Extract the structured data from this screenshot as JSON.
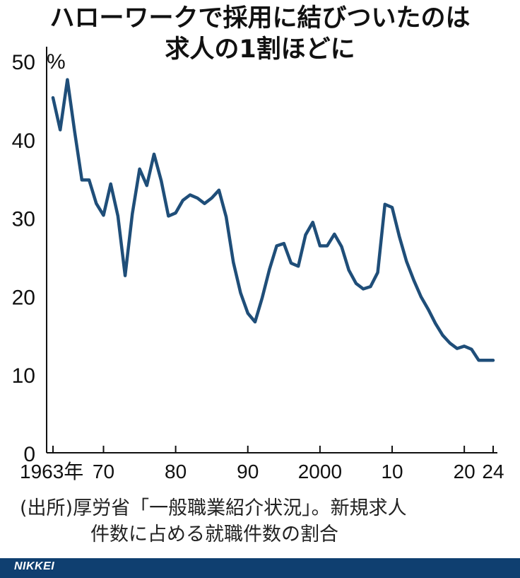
{
  "title_line1": "ハローワークで採用に結びついたのは",
  "title_line2": "求人の1割ほどに",
  "source_line1": "(出所)厚労省「一般職業紹介状況」。新規求人",
  "source_line2": "件数に占める就職件数の割合",
  "brand": "NIKKEI",
  "chart_data": {
    "type": "line",
    "ylabel": "%",
    "ylim": [
      0,
      50
    ],
    "yticks": [
      0,
      10,
      20,
      30,
      40,
      50
    ],
    "xlim": [
      1963,
      2024
    ],
    "xticks": [
      {
        "value": 1963,
        "label": "1963年"
      },
      {
        "value": 1970,
        "label": "70"
      },
      {
        "value": 1980,
        "label": "80"
      },
      {
        "value": 1990,
        "label": "90"
      },
      {
        "value": 2000,
        "label": "2000"
      },
      {
        "value": 2010,
        "label": "10"
      },
      {
        "value": 2020,
        "label": "20"
      },
      {
        "value": 2024,
        "label": "24"
      }
    ],
    "color": "#1f4e79",
    "x": [
      1963,
      1964,
      1965,
      1966,
      1967,
      1968,
      1969,
      1970,
      1971,
      1972,
      1973,
      1974,
      1975,
      1976,
      1977,
      1978,
      1979,
      1980,
      1981,
      1982,
      1983,
      1984,
      1985,
      1986,
      1987,
      1988,
      1989,
      1990,
      1991,
      1992,
      1993,
      1994,
      1995,
      1996,
      1997,
      1998,
      1999,
      2000,
      2001,
      2002,
      2003,
      2004,
      2005,
      2006,
      2007,
      2008,
      2009,
      2010,
      2011,
      2012,
      2013,
      2014,
      2015,
      2016,
      2017,
      2018,
      2019,
      2020,
      2021,
      2022,
      2023,
      2024
    ],
    "values": [
      45.3,
      41.2,
      47.6,
      41.0,
      34.8,
      34.8,
      31.8,
      30.3,
      34.3,
      30.2,
      22.6,
      30.5,
      36.2,
      34.1,
      38.1,
      34.7,
      30.2,
      30.6,
      32.2,
      32.9,
      32.5,
      31.8,
      32.5,
      33.5,
      30.1,
      24.3,
      20.4,
      17.8,
      16.7,
      19.8,
      23.4,
      26.4,
      26.7,
      24.2,
      23.8,
      27.8,
      29.4,
      26.4,
      26.4,
      27.9,
      26.3,
      23.3,
      21.6,
      20.9,
      21.2,
      23.0,
      31.7,
      31.3,
      27.6,
      24.4,
      22.0,
      19.9,
      18.3,
      16.5,
      15.0,
      14.0,
      13.3,
      13.6,
      13.2,
      11.8,
      11.8,
      11.8
    ]
  }
}
